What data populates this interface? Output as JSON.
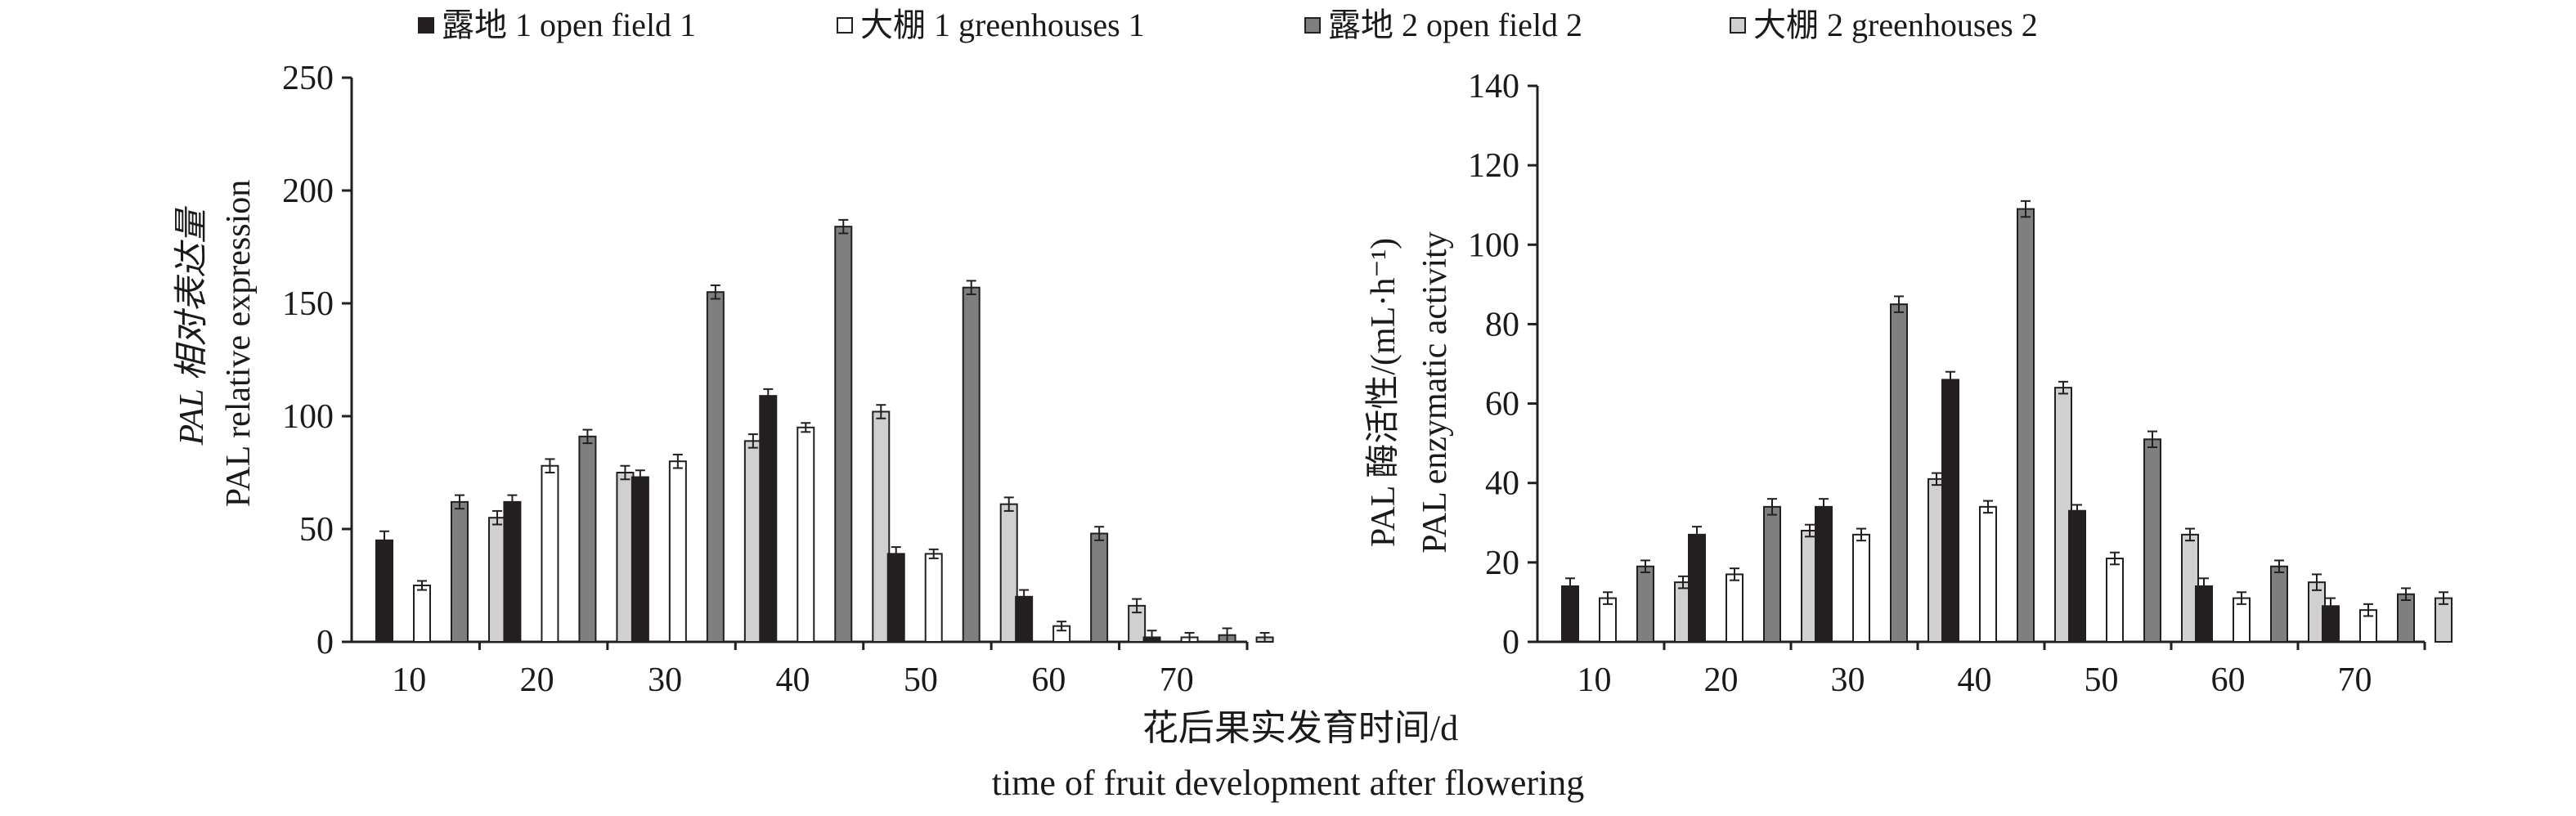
{
  "legend": [
    {
      "label": "露地 1 open field 1",
      "color": "#231f20"
    },
    {
      "label": "大棚 1 greenhouses 1",
      "color": "#ffffff"
    },
    {
      "label": "露地 2 open field 2",
      "color": "#7f7f7f"
    },
    {
      "label": "大棚 2 greenhouses  2",
      "color": "#d0d0d0"
    }
  ],
  "shared_xlabel": {
    "line1": "花后果实发育时间/d",
    "line2": "time of fruit development after flowering"
  },
  "chart_data": [
    {
      "type": "bar",
      "title": "",
      "ylabel_line1": "PAL 相对表达量",
      "ylabel_line2": "PAL relative expression",
      "categories": [
        "10",
        "20",
        "30",
        "40",
        "50",
        "60",
        "70"
      ],
      "ylim": [
        0,
        250
      ],
      "yticks": [
        0,
        50,
        100,
        150,
        200,
        250
      ],
      "grid": false,
      "series": [
        {
          "name": "露地 1 open field 1",
          "values": [
            45,
            62,
            73,
            109,
            39,
            20,
            2
          ],
          "errors": [
            4,
            3,
            3,
            3,
            3,
            3,
            3
          ]
        },
        {
          "name": "大棚 1 greenhouses 1",
          "values": [
            25,
            78,
            80,
            95,
            39,
            7,
            2
          ],
          "errors": [
            2,
            3,
            3,
            2,
            2,
            2,
            2
          ]
        },
        {
          "name": "露地 2 open field 2",
          "values": [
            62,
            91,
            155,
            184,
            157,
            48,
            3
          ],
          "errors": [
            3,
            3,
            3,
            3,
            3,
            3,
            3
          ]
        },
        {
          "name": "大棚 2 greenhouses  2",
          "values": [
            55,
            75,
            89,
            102,
            61,
            16,
            2
          ],
          "errors": [
            3,
            3,
            3,
            3,
            3,
            3,
            2
          ]
        }
      ]
    },
    {
      "type": "bar",
      "title": "",
      "ylabel_line1": "PAL 酶活性/(mL·h⁻¹)",
      "ylabel_line2": "PAL enzymatic activity",
      "categories": [
        "10",
        "20",
        "30",
        "40",
        "50",
        "60",
        "70"
      ],
      "ylim": [
        0,
        140
      ],
      "yticks": [
        0,
        20,
        40,
        60,
        80,
        100,
        120,
        140
      ],
      "grid": false,
      "series": [
        {
          "name": "露地 1 open field 1",
          "values": [
            14,
            27,
            34,
            66,
            33,
            14,
            9
          ],
          "errors": [
            2,
            2,
            2,
            2,
            1.5,
            2,
            2
          ]
        },
        {
          "name": "大棚 1 greenhouses 1",
          "values": [
            11,
            17,
            27,
            34,
            21,
            11,
            8
          ],
          "errors": [
            1.5,
            1.5,
            1.5,
            1.5,
            1.5,
            1.5,
            1.5
          ]
        },
        {
          "name": "露地 2 open field 2",
          "values": [
            19,
            34,
            85,
            109,
            51,
            19,
            12
          ],
          "errors": [
            1.5,
            2,
            2,
            2,
            2,
            1.5,
            1.5
          ]
        },
        {
          "name": "大棚 2 greenhouses  2",
          "values": [
            15,
            28,
            41,
            64,
            27,
            15,
            11
          ],
          "errors": [
            1.5,
            1.5,
            1.5,
            1.5,
            1.5,
            2,
            1.5
          ]
        }
      ]
    }
  ]
}
